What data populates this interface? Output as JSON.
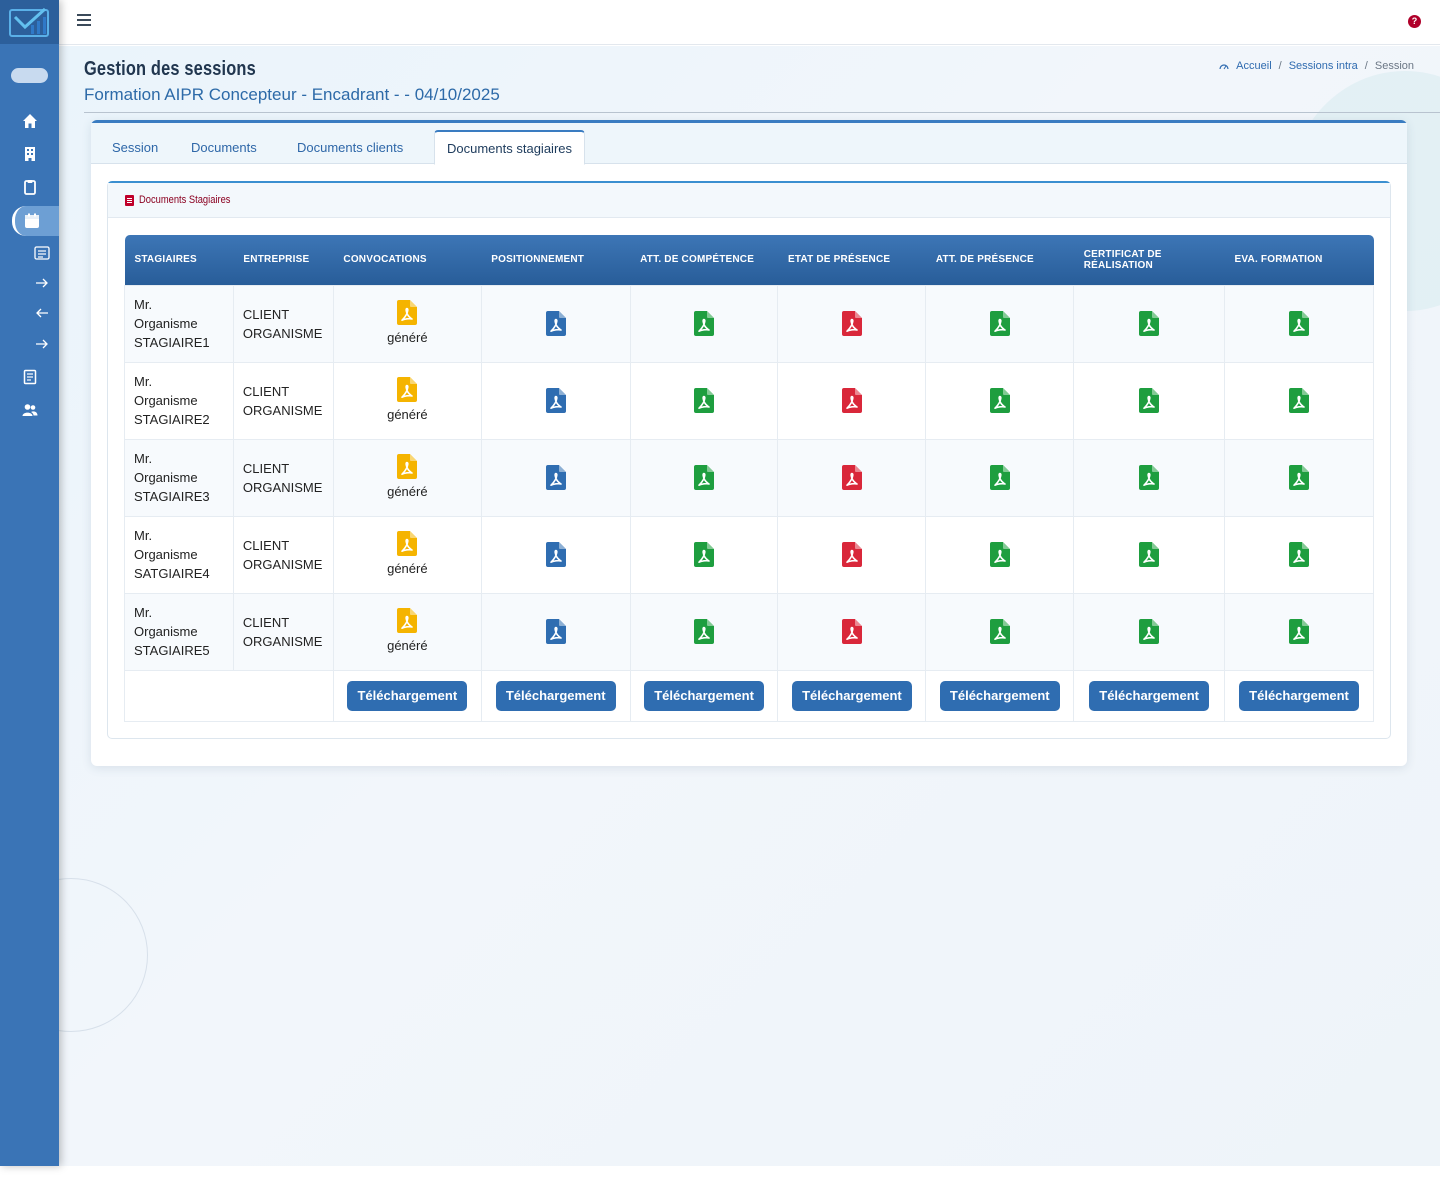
{
  "header": {
    "page_title": "Gestion des sessions",
    "subtitle": "Formation AIPR Concepteur - Encadrant - - 04/10/2025",
    "breadcrumb": [
      "Accueil",
      "Sessions intra",
      "Session"
    ],
    "help_label": "?"
  },
  "tabs": [
    "Session",
    "Documents",
    "Documents clients",
    "Documents stagiaires"
  ],
  "active_tab": "Documents stagiaires",
  "panel": {
    "title": "Documents Stagiaires"
  },
  "table": {
    "columns": [
      "STAGIAIRES",
      "ENTREPRISE",
      "CONVOCATIONS",
      "POSITIONNEMENT",
      "ATT. DE COMPÉTENCE",
      "ETAT DE PRÉSENCE",
      "ATT. DE PRÉSENCE",
      "CERTIFICAT DE RÉALISATION",
      "EVA. FORMATION"
    ],
    "icon_colors": {
      "convocation": "#f5b400",
      "positionnement": "#2f6db1",
      "competence": "#1e9e3f",
      "etat_presence": "#d9273a",
      "att_presence": "#1e9e3f",
      "certificat": "#1e9e3f",
      "evaluation": "#1e9e3f"
    },
    "rows": [
      {
        "stagiaire": [
          "Mr.",
          "Organisme",
          "STAGIAIRE1"
        ],
        "entreprise": [
          "CLIENT",
          "ORGANISME"
        ],
        "convocation_status": "généré"
      },
      {
        "stagiaire": [
          "Mr.",
          "Organisme",
          "STAGIAIRE2"
        ],
        "entreprise": [
          "CLIENT",
          "ORGANISME"
        ],
        "convocation_status": "généré"
      },
      {
        "stagiaire": [
          "Mr.",
          "Organisme",
          "STAGIAIRE3"
        ],
        "entreprise": [
          "CLIENT",
          "ORGANISME"
        ],
        "convocation_status": "généré"
      },
      {
        "stagiaire": [
          "Mr.",
          "Organisme",
          "SATGIAIRE4"
        ],
        "entreprise": [
          "CLIENT",
          "ORGANISME"
        ],
        "convocation_status": "généré"
      },
      {
        "stagiaire": [
          "Mr.",
          "Organisme",
          "STAGIAIRE5"
        ],
        "entreprise": [
          "CLIENT",
          "ORGANISME"
        ],
        "convocation_status": "généré"
      }
    ],
    "download_label": "Téléchargement"
  },
  "sidebar": {
    "icons": [
      "home-icon",
      "building-icon",
      "clipboard-icon",
      "calendar-icon",
      "list-icon",
      "arrow-right-icon",
      "arrow-left-icon",
      "arrow-right-icon",
      "document-list-icon",
      "users-icon"
    ]
  }
}
